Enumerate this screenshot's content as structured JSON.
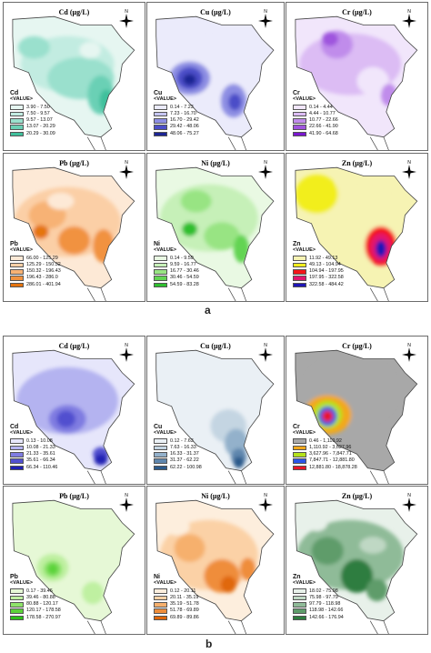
{
  "figure_a": {
    "label": "a",
    "panels": [
      {
        "id": "a-cd",
        "title": "Cd (µg/L)",
        "element": "Cd",
        "value_label": "<VALUE>",
        "ranges": [
          "3.90 - 7.50",
          "7.50 - 9.57",
          "9.57 - 13.07",
          "13.07 - 20.29",
          "20.29 - 30.09"
        ],
        "colors": [
          "#e6f6f1",
          "#c2ece1",
          "#9ae0cd",
          "#6bd0b5",
          "#40c09c"
        ]
      },
      {
        "id": "a-cu",
        "title": "Cu (µg/L)",
        "element": "Cu",
        "value_label": "<VALUE>",
        "ranges": [
          "0.14 - 7.23",
          "7.23 - 16.70",
          "16.70 - 29.42",
          "29.42 - 48.06",
          "48.06 - 75.27"
        ],
        "colors": [
          "#ebebfb",
          "#c5c5f1",
          "#8d8ee3",
          "#4c4ec8",
          "#1c2594"
        ]
      },
      {
        "id": "a-cr",
        "title": "Cr (µg/L)",
        "element": "Cr",
        "value_label": "<VALUE>",
        "ranges": [
          "0.14 - 4.44",
          "4.44 - 10.77",
          "10.77 - 22.66",
          "22.66 - 41.90",
          "41.90 - 64.68"
        ],
        "colors": [
          "#f1e6fb",
          "#dcbcf4",
          "#c08ceb",
          "#9f55de",
          "#7a17cf"
        ]
      },
      {
        "id": "a-pb",
        "title": "Pb (µg/L)",
        "element": "Pb",
        "value_label": "<VALUE>",
        "ranges": [
          "66.00 - 125.29",
          "125.29 - 150.32",
          "150.32 - 196.43",
          "196.43 - 286.0",
          "286.01 - 401.94"
        ],
        "colors": [
          "#fde9d6",
          "#fbcfa6",
          "#f7b274",
          "#f1923f",
          "#e5740f"
        ]
      },
      {
        "id": "a-ni",
        "title": "Ni (µg/L)",
        "element": "Ni",
        "value_label": "<VALUE>",
        "ranges": [
          "0.14 - 9.59",
          "9.59 - 16.77",
          "16.77 - 30.46",
          "30.46 - 54.59",
          "54.59 - 83.28"
        ],
        "colors": [
          "#e9f9e3",
          "#c6f0b8",
          "#98e483",
          "#63d453",
          "#2fbf2f"
        ]
      },
      {
        "id": "a-zn",
        "title": "Zn (µg/L)",
        "element": "Zn",
        "value_label": "<VALUE>",
        "ranges": [
          "11.92 - 49.13",
          "49.13 - 104.94",
          "104.94 - 197.95",
          "197.95 - 322.58",
          "322.58 - 484.42"
        ],
        "colors": [
          "#f6f3b3",
          "#f2ee1e",
          "#f4161a",
          "#e1166e",
          "#1e16b6"
        ]
      }
    ]
  },
  "figure_b": {
    "label": "b",
    "panels": [
      {
        "id": "b-cd",
        "title": "Cd (µg/L)",
        "element": "Cd",
        "value_label": "<VALUE>",
        "ranges": [
          "0.13 - 10.08",
          "10.08 - 21.33",
          "21.33 - 35.61",
          "35.61 - 66.34",
          "66.34 - 110.46"
        ],
        "colors": [
          "#e6e6fb",
          "#b4b3f0",
          "#7f7ce1",
          "#5150cf",
          "#2020b4"
        ]
      },
      {
        "id": "b-cu",
        "title": "Cu (µg/L)",
        "element": "Cu",
        "value_label": "<VALUE>",
        "ranges": [
          "0.12 - 7.63",
          "7.63 - 16.33",
          "16.33 - 31.37",
          "31.37 - 62.22",
          "62.22 - 100.98"
        ],
        "colors": [
          "#eaf0f5",
          "#c4d5e2",
          "#93b1cb",
          "#5f86ad",
          "#2c5a8b"
        ]
      },
      {
        "id": "b-cr",
        "title": "Cr (µg/L)",
        "element": "Cr",
        "value_label": "<VALUE>",
        "ranges": [
          "0.46 - 1,110.92",
          "1,110.92 - 3,627.96",
          "3,627.96 - 7,847.71",
          "7,847.71 - 12,881.80",
          "12,881.80 - 18,878.28"
        ],
        "colors": [
          "#a8a8a8",
          "#f2a81c",
          "#b4e21a",
          "#2a55e8",
          "#e8172a"
        ]
      },
      {
        "id": "b-pb",
        "title": "Pb (µg/L)",
        "element": "Pb",
        "value_label": "<VALUE>",
        "ranges": [
          "0.17 - 39.46",
          "39.46 - 80.88",
          "80.88 - 120.17",
          "120.17 - 178.58",
          "178.58 - 270.97"
        ],
        "colors": [
          "#e6f8d6",
          "#bff0a1",
          "#8ee36a",
          "#5cd33a",
          "#2fc21c"
        ]
      },
      {
        "id": "b-ni",
        "title": "Ni (µg/L)",
        "element": "Ni",
        "value_label": "<VALUE>",
        "ranges": [
          "0.12 - 20.11",
          "20.11 - 35.19",
          "35.19 - 51.78",
          "51.78 - 69.89",
          "69.89 - 89.86"
        ],
        "colors": [
          "#fdeedd",
          "#fbd1a6",
          "#f6b06d",
          "#ef8d3a",
          "#e0680c"
        ]
      },
      {
        "id": "b-zn",
        "title": "Zn (µg/L)",
        "element": "Zn",
        "value_label": "<VALUE>",
        "ranges": [
          "18.02 - 75.98",
          "75.98 - 97.79",
          "97.79 - 118.98",
          "118.98 - 142.66",
          "142.66 - 176.94"
        ],
        "colors": [
          "#e8f1ea",
          "#bfd8c4",
          "#8fbb98",
          "#5e9c6a",
          "#2f7d3f"
        ]
      }
    ]
  }
}
